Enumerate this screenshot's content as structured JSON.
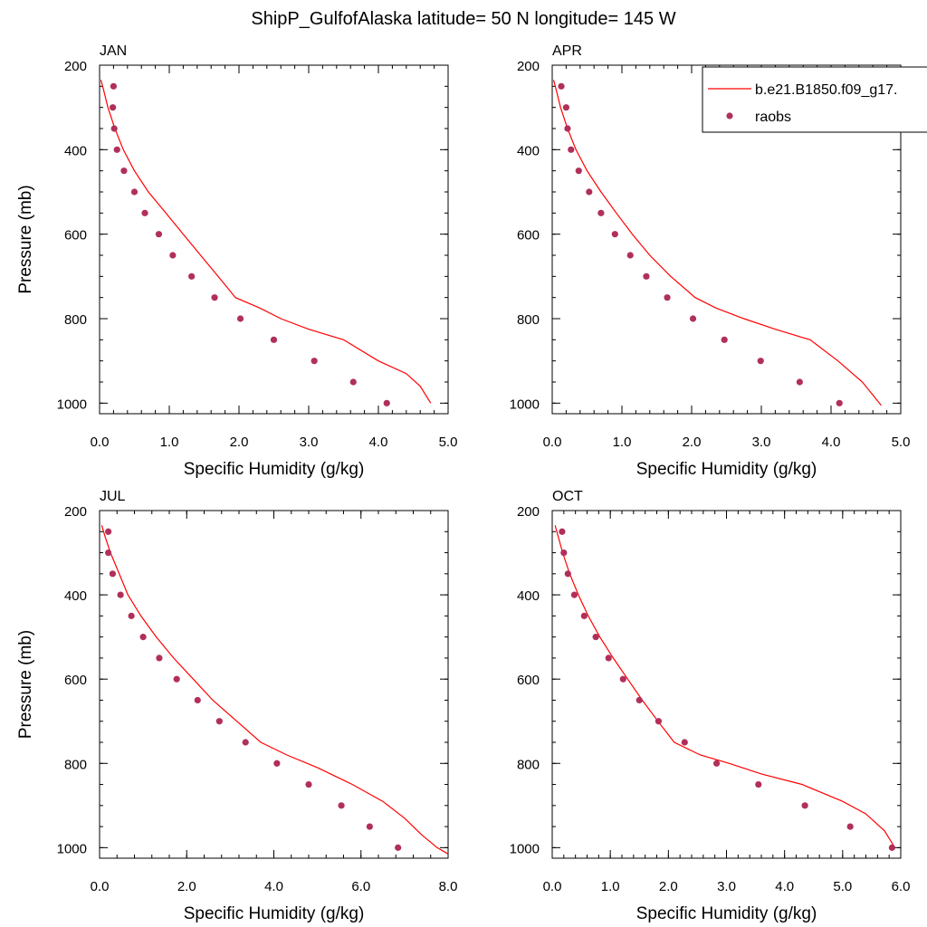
{
  "title": "ShipP_GulfofAlaska  latitude= 50 N longitude= 145 W",
  "colors": {
    "model": "#ff0000",
    "obs": "#b0305a"
  },
  "legend": {
    "model": "b.e21.B1850.f09_g17.",
    "obs": "raobs",
    "placement": "top-right"
  },
  "chart_data": [
    {
      "type": "line",
      "panel": "JAN",
      "xlabel": "Specific Humidity (g/kg)",
      "ylabel": "Pressure (mb)",
      "xlim": [
        0,
        5
      ],
      "ylim": [
        200,
        1025
      ],
      "y_inverted": true,
      "xticks": [
        0,
        1,
        2,
        3,
        4,
        5
      ],
      "xticklabels": [
        "0.0",
        "1.0",
        "2.0",
        "3.0",
        "4.0",
        "5.0"
      ],
      "yticks": [
        200,
        400,
        600,
        800,
        1000
      ],
      "yticklabels": [
        "200",
        "400",
        "600",
        "800",
        "1000"
      ],
      "series": [
        {
          "name": "b.e21.B1850.f09_g17.",
          "style": "line",
          "x": [
            0.02,
            0.06,
            0.12,
            0.22,
            0.34,
            0.5,
            0.7,
            0.95,
            1.2,
            1.45,
            1.7,
            1.95,
            2.3,
            2.6,
            3.0,
            3.5,
            4.0,
            4.4,
            4.6,
            4.75
          ],
          "y": [
            235,
            260,
            300,
            350,
            400,
            450,
            500,
            550,
            600,
            650,
            700,
            750,
            775,
            800,
            825,
            850,
            900,
            930,
            960,
            1000
          ]
        },
        {
          "name": "raobs",
          "style": "markers",
          "x": [
            0.2,
            0.19,
            0.21,
            0.25,
            0.35,
            0.5,
            0.65,
            0.85,
            1.05,
            1.32,
            1.65,
            2.02,
            2.5,
            3.08,
            3.64,
            4.12
          ],
          "y": [
            250,
            300,
            350,
            400,
            450,
            500,
            550,
            600,
            650,
            700,
            750,
            800,
            850,
            900,
            950,
            1000
          ]
        }
      ]
    },
    {
      "type": "line",
      "panel": "APR",
      "xlabel": "Specific Humidity (g/kg)",
      "ylabel": "",
      "xlim": [
        0,
        5
      ],
      "ylim": [
        200,
        1025
      ],
      "y_inverted": true,
      "xticks": [
        0,
        1,
        2,
        3,
        4,
        5
      ],
      "xticklabels": [
        "0.0",
        "1.0",
        "2.0",
        "3.0",
        "4.0",
        "5.0"
      ],
      "yticks": [
        200,
        400,
        600,
        800,
        1000
      ],
      "yticklabels": [
        "200",
        "400",
        "600",
        "800",
        "1000"
      ],
      "series": [
        {
          "name": "b.e21.B1850.f09_g17.",
          "style": "line",
          "x": [
            0.02,
            0.06,
            0.12,
            0.22,
            0.34,
            0.5,
            0.7,
            0.92,
            1.15,
            1.4,
            1.7,
            2.05,
            2.35,
            2.75,
            3.2,
            3.7,
            4.1,
            4.45,
            4.72
          ],
          "y": [
            235,
            260,
            300,
            350,
            400,
            450,
            500,
            550,
            600,
            650,
            700,
            750,
            775,
            800,
            825,
            850,
            900,
            950,
            1005
          ]
        },
        {
          "name": "raobs",
          "style": "markers",
          "x": [
            0.13,
            0.2,
            0.22,
            0.27,
            0.38,
            0.53,
            0.7,
            0.9,
            1.12,
            1.35,
            1.65,
            2.02,
            2.47,
            2.99,
            3.55,
            4.12
          ],
          "y": [
            250,
            300,
            350,
            400,
            450,
            500,
            550,
            600,
            650,
            700,
            750,
            800,
            850,
            900,
            950,
            1000
          ]
        }
      ]
    },
    {
      "type": "line",
      "panel": "JUL",
      "xlabel": "Specific Humidity (g/kg)",
      "ylabel": "Pressure (mb)",
      "xlim": [
        0,
        8
      ],
      "ylim": [
        200,
        1025
      ],
      "y_inverted": true,
      "xticks": [
        0,
        2,
        4,
        6,
        8
      ],
      "xticklabels": [
        "0.0",
        "2.0",
        "4.0",
        "6.0",
        "8.0"
      ],
      "yticks": [
        200,
        400,
        600,
        800,
        1000
      ],
      "yticklabels": [
        "200",
        "400",
        "600",
        "800",
        "1000"
      ],
      "series": [
        {
          "name": "b.e21.B1850.f09_g17.",
          "style": "line",
          "x": [
            0.05,
            0.12,
            0.25,
            0.45,
            0.65,
            0.95,
            1.3,
            1.7,
            2.15,
            2.6,
            3.15,
            3.7,
            4.3,
            5.0,
            5.8,
            6.5,
            7.0,
            7.4,
            7.75,
            8.0
          ],
          "y": [
            235,
            260,
            300,
            350,
            400,
            450,
            500,
            550,
            600,
            650,
            700,
            750,
            780,
            810,
            850,
            890,
            930,
            970,
            1000,
            1015
          ]
        },
        {
          "name": "raobs",
          "style": "markers",
          "x": [
            0.2,
            0.2,
            0.3,
            0.48,
            0.73,
            1.0,
            1.37,
            1.77,
            2.25,
            2.75,
            3.35,
            4.07,
            4.8,
            5.55,
            6.2,
            6.85
          ],
          "y": [
            250,
            300,
            350,
            400,
            450,
            500,
            550,
            600,
            650,
            700,
            750,
            800,
            850,
            900,
            950,
            1000
          ]
        }
      ]
    },
    {
      "type": "line",
      "panel": "OCT",
      "xlabel": "Specific Humidity (g/kg)",
      "ylabel": "",
      "xlim": [
        0,
        6
      ],
      "ylim": [
        200,
        1025
      ],
      "y_inverted": true,
      "xticks": [
        0,
        1,
        2,
        3,
        4,
        5,
        6
      ],
      "xticklabels": [
        "0.0",
        "1.0",
        "2.0",
        "3.0",
        "4.0",
        "5.0",
        "6.0"
      ],
      "yticks": [
        200,
        400,
        600,
        800,
        1000
      ],
      "yticklabels": [
        "200",
        "400",
        "600",
        "800",
        "1000"
      ],
      "series": [
        {
          "name": "b.e21.B1850.f09_g17.",
          "style": "line",
          "x": [
            0.05,
            0.1,
            0.18,
            0.3,
            0.45,
            0.62,
            0.82,
            1.05,
            1.3,
            1.55,
            1.82,
            2.1,
            2.55,
            3.05,
            3.6,
            4.3,
            5.0,
            5.4,
            5.72,
            5.9
          ],
          "y": [
            235,
            260,
            300,
            350,
            400,
            450,
            500,
            550,
            600,
            650,
            700,
            750,
            780,
            800,
            825,
            850,
            890,
            920,
            960,
            1000
          ]
        },
        {
          "name": "raobs",
          "style": "markers",
          "x": [
            0.17,
            0.2,
            0.27,
            0.38,
            0.55,
            0.75,
            0.97,
            1.22,
            1.5,
            1.83,
            2.28,
            2.83,
            3.55,
            4.35,
            5.13,
            5.85
          ],
          "y": [
            250,
            300,
            350,
            400,
            450,
            500,
            550,
            600,
            650,
            700,
            750,
            800,
            850,
            900,
            950,
            1000
          ]
        }
      ]
    }
  ]
}
